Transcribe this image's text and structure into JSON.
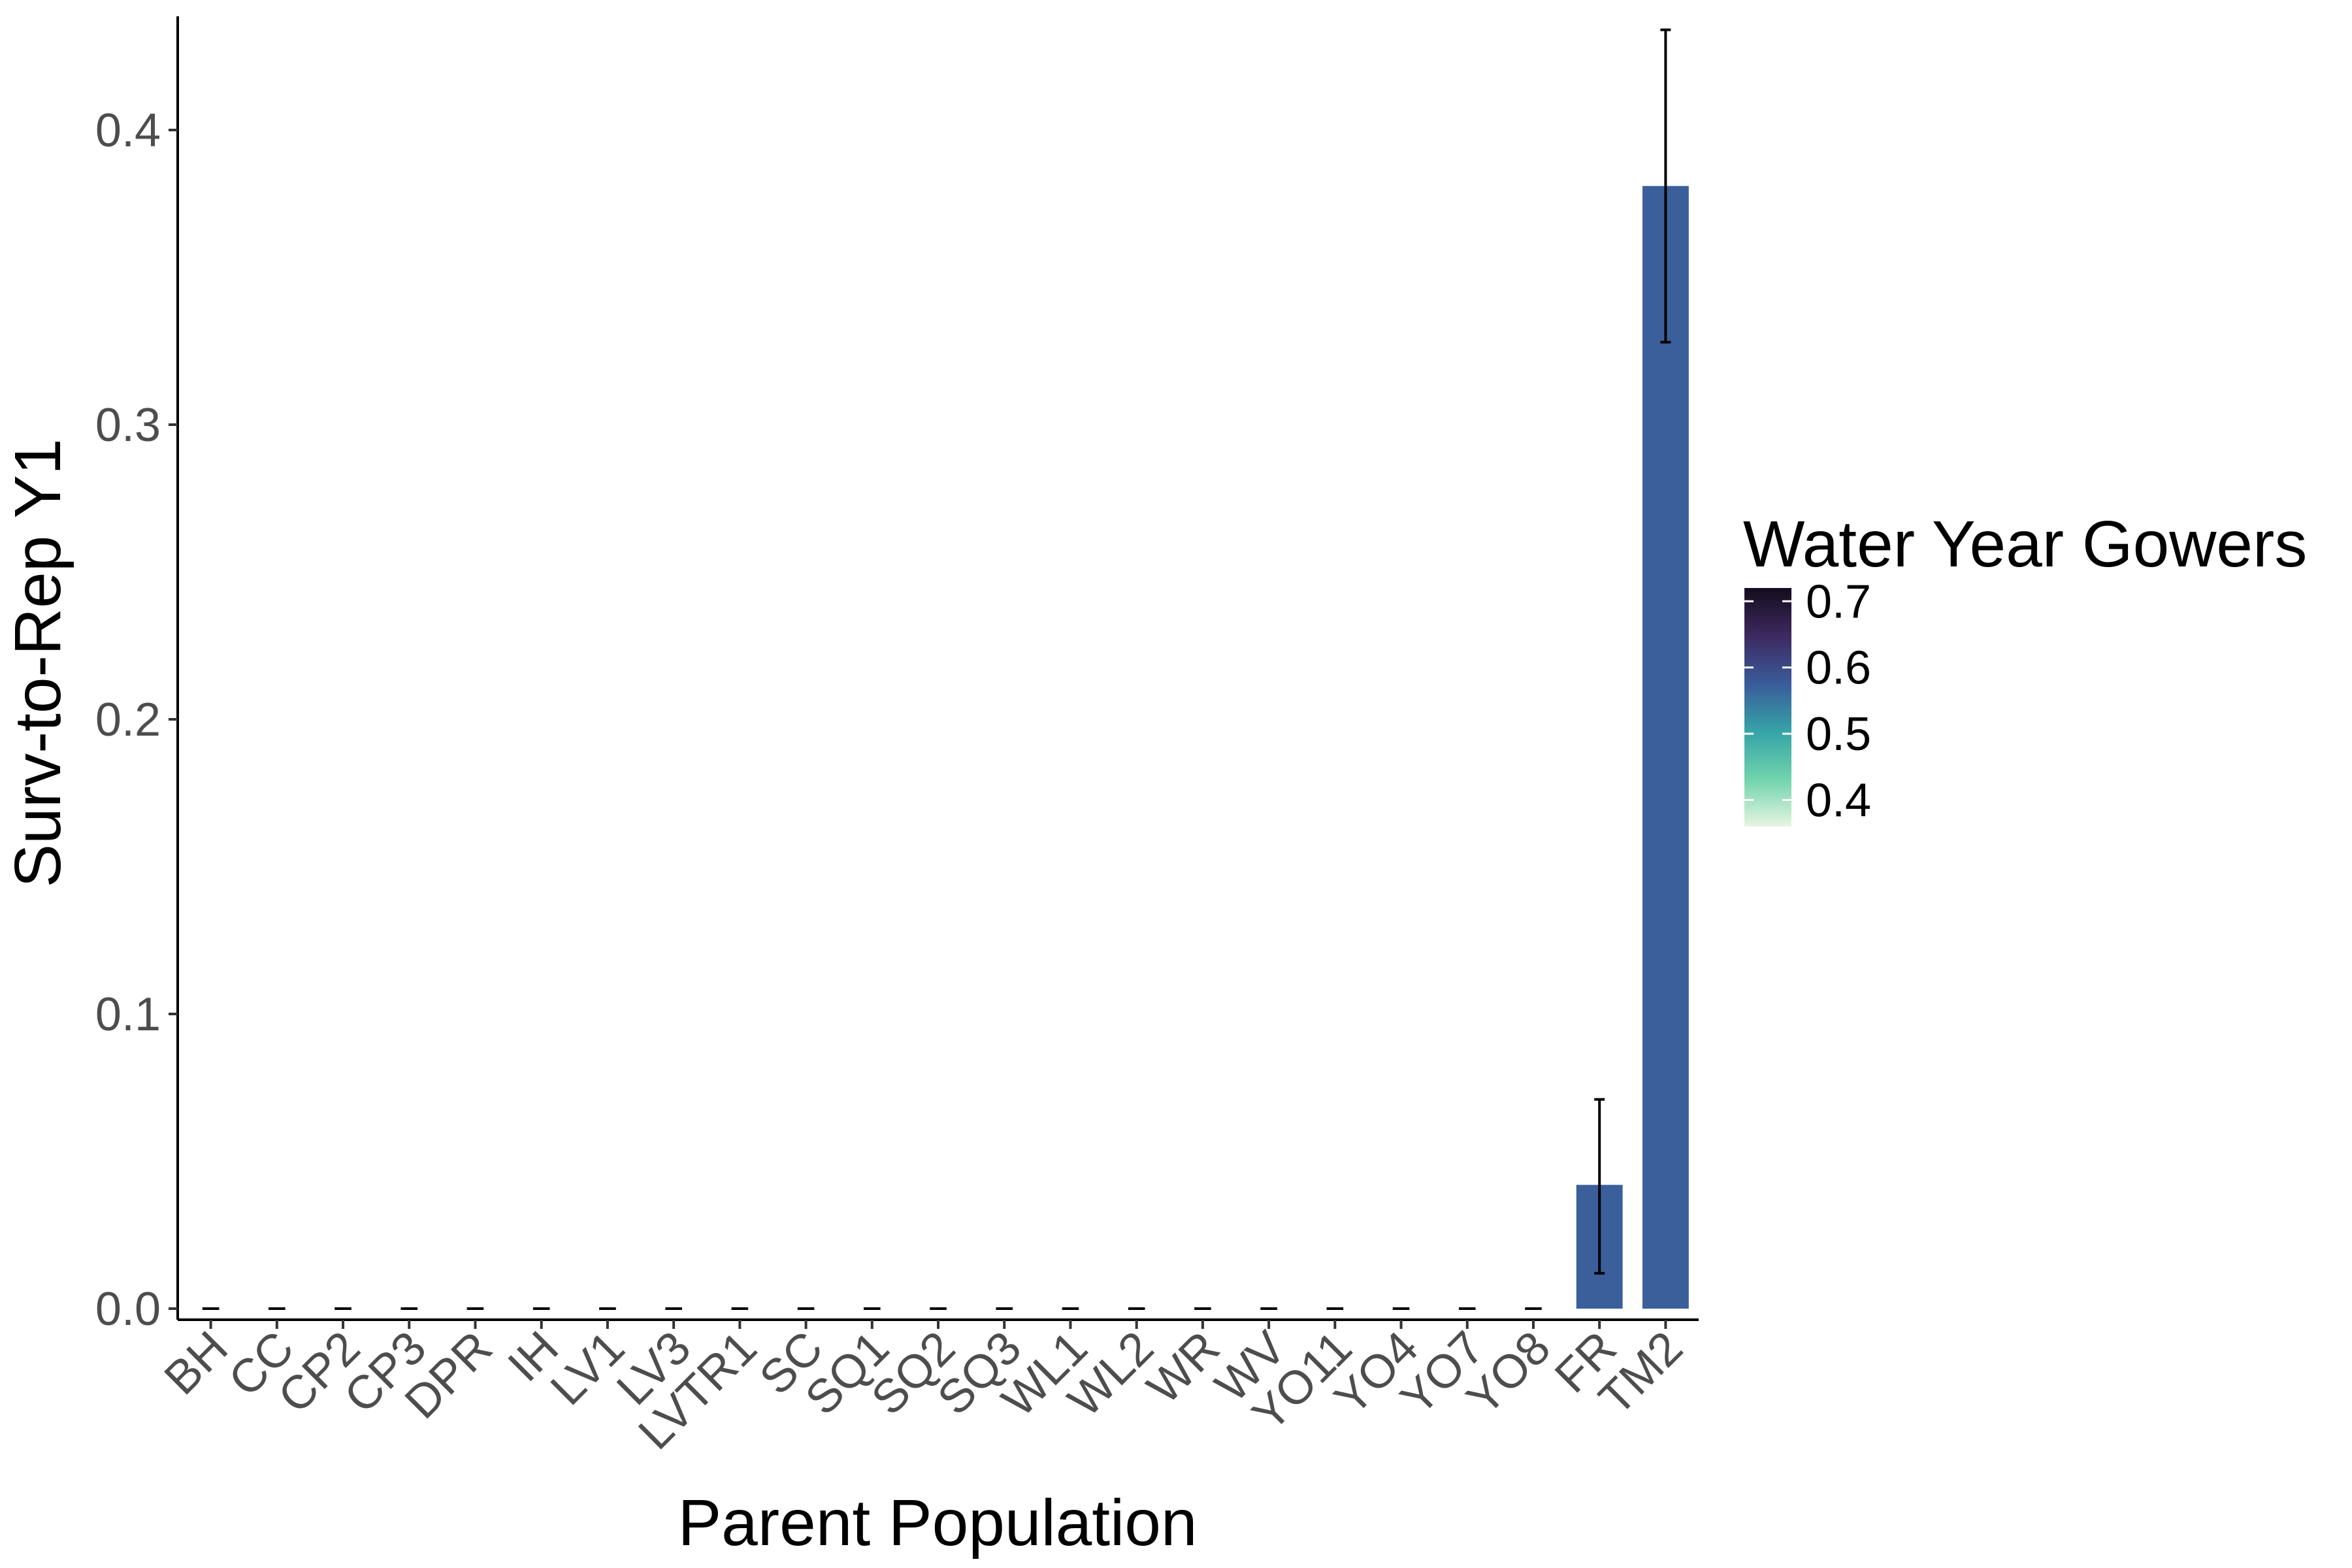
{
  "chart_data": {
    "type": "bar",
    "xlabel": "Parent Population",
    "ylabel": "Surv-to-Rep Y1",
    "categories": [
      "BH",
      "CC",
      "CP2",
      "CP3",
      "DPR",
      "IH",
      "LV1",
      "LV3",
      "LVTR1",
      "SC",
      "SQ1",
      "SQ2",
      "SQ3",
      "WL1",
      "WL2",
      "WR",
      "WV",
      "YO11",
      "YO4",
      "YO7",
      "YO8",
      "FR",
      "TM2"
    ],
    "values": [
      0,
      0,
      0,
      0,
      0,
      0,
      0,
      0,
      0,
      0,
      0,
      0,
      0,
      0,
      0,
      0,
      0,
      0,
      0,
      0,
      0,
      0.042,
      0.381
    ],
    "error_low": [
      0,
      0,
      0,
      0,
      0,
      0,
      0,
      0,
      0,
      0,
      0,
      0,
      0,
      0,
      0,
      0,
      0,
      0,
      0,
      0,
      0,
      0.012,
      0.328
    ],
    "error_high": [
      0,
      0,
      0,
      0,
      0,
      0,
      0,
      0,
      0,
      0,
      0,
      0,
      0,
      0,
      0,
      0,
      0,
      0,
      0,
      0,
      0,
      0.071,
      0.434
    ],
    "fill_values": [
      null,
      null,
      null,
      null,
      null,
      null,
      null,
      null,
      null,
      null,
      null,
      null,
      null,
      null,
      null,
      null,
      null,
      null,
      null,
      null,
      null,
      0.53,
      0.55
    ],
    "ylim": [
      0,
      0.44
    ],
    "yticks": [
      0.0,
      0.1,
      0.2,
      0.3,
      0.4
    ],
    "ytick_labels": [
      "0.0",
      "0.1",
      "0.2",
      "0.3",
      "0.4"
    ],
    "grid": false,
    "legend": {
      "title": "Water Year Gowers",
      "position": "right",
      "labels": [
        "0.7",
        "0.6",
        "0.5",
        "0.4"
      ],
      "values": [
        0.7,
        0.6,
        0.5,
        0.4
      ],
      "range": [
        0.36,
        0.72
      ],
      "colors": [
        "#e6f5e1",
        "#6fd3ac",
        "#35a3a8",
        "#3a5b99",
        "#3d2960",
        "#140d1d"
      ]
    },
    "colors": {
      "bar_fill": "#3a5f9b",
      "error_bar": "#000000",
      "axis": "#000000"
    }
  }
}
